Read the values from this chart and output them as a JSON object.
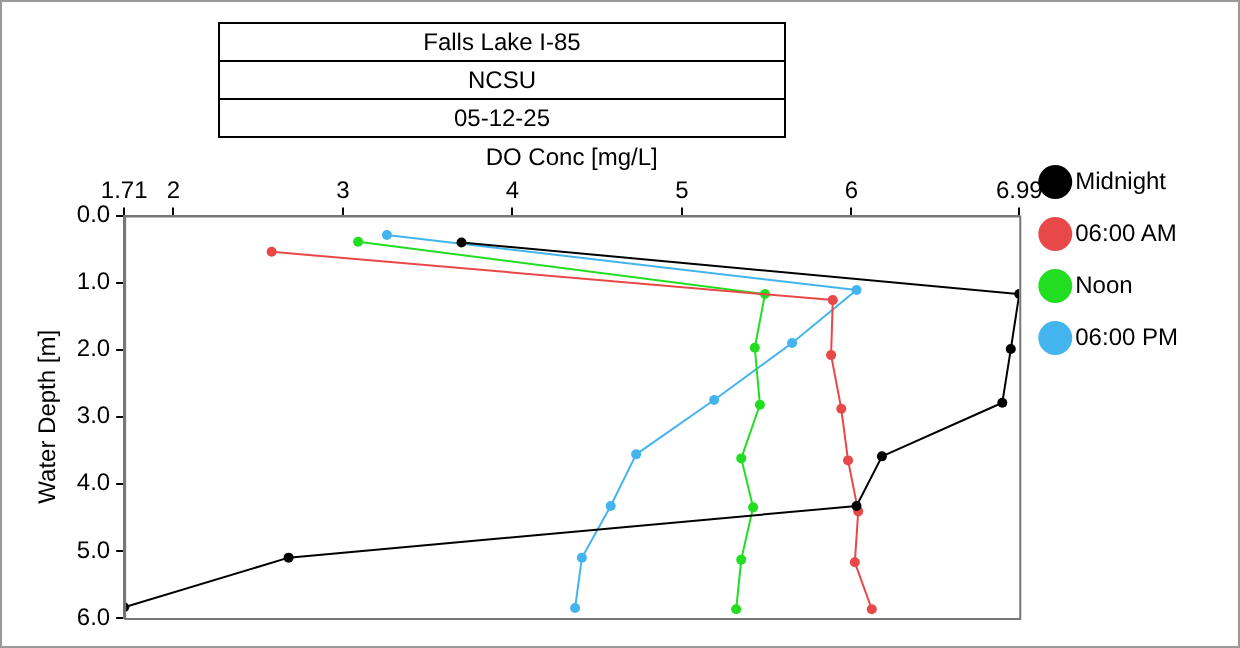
{
  "chart_data": {
    "type": "line",
    "title": "Falls Lake I-85",
    "subtitle": "NCSU",
    "annotations": [
      "05-12-25"
    ],
    "xlabel": "DO Conc [mg/L]",
    "ylabel": "Water Depth [m]",
    "xlim": [
      1.71,
      6.99
    ],
    "xticks": [
      1.71,
      2,
      3,
      4,
      5,
      6,
      6.99
    ],
    "ylim": [
      6.0,
      0.0
    ],
    "yticks": [
      {
        "value": 0,
        "label": "0.0"
      },
      {
        "value": 1,
        "label": "1.0"
      },
      {
        "value": 2,
        "label": "2.0"
      },
      {
        "value": 3,
        "label": "3.0"
      },
      {
        "value": 4,
        "label": "4.0"
      },
      {
        "value": 5,
        "label": "5.0"
      },
      {
        "value": 6,
        "label": "6.0"
      }
    ],
    "grid": false,
    "legend": "right",
    "marker": "circle",
    "line_style": "solid",
    "series": [
      {
        "name": "Midnight",
        "color": "#000000",
        "x": [
          3.7,
          6.99,
          6.94,
          6.89,
          6.18,
          6.03,
          2.68,
          1.71
        ],
        "values": [
          0.4,
          1.17,
          1.99,
          2.79,
          3.59,
          4.33,
          5.1,
          5.84
        ]
      },
      {
        "name": "06:00 AM",
        "color": "#e84848",
        "x": [
          2.58,
          5.89,
          5.88,
          5.94,
          5.98,
          6.04,
          6.02,
          6.12
        ],
        "values": [
          0.54,
          1.26,
          2.08,
          2.88,
          3.65,
          4.41,
          5.17,
          5.87
        ]
      },
      {
        "name": "Noon",
        "color": "#22dd22",
        "x": [
          3.09,
          5.49,
          5.43,
          5.46,
          5.35,
          5.42,
          5.35,
          5.32
        ],
        "values": [
          0.39,
          1.17,
          1.97,
          2.82,
          3.62,
          4.35,
          5.13,
          5.87
        ]
      },
      {
        "name": "06:00 PM",
        "color": "#44b4ee",
        "x": [
          3.26,
          6.03,
          5.65,
          5.19,
          4.73,
          4.58,
          4.41,
          4.37
        ],
        "values": [
          0.29,
          1.11,
          1.9,
          2.75,
          3.56,
          4.33,
          5.1,
          5.85
        ]
      }
    ]
  }
}
